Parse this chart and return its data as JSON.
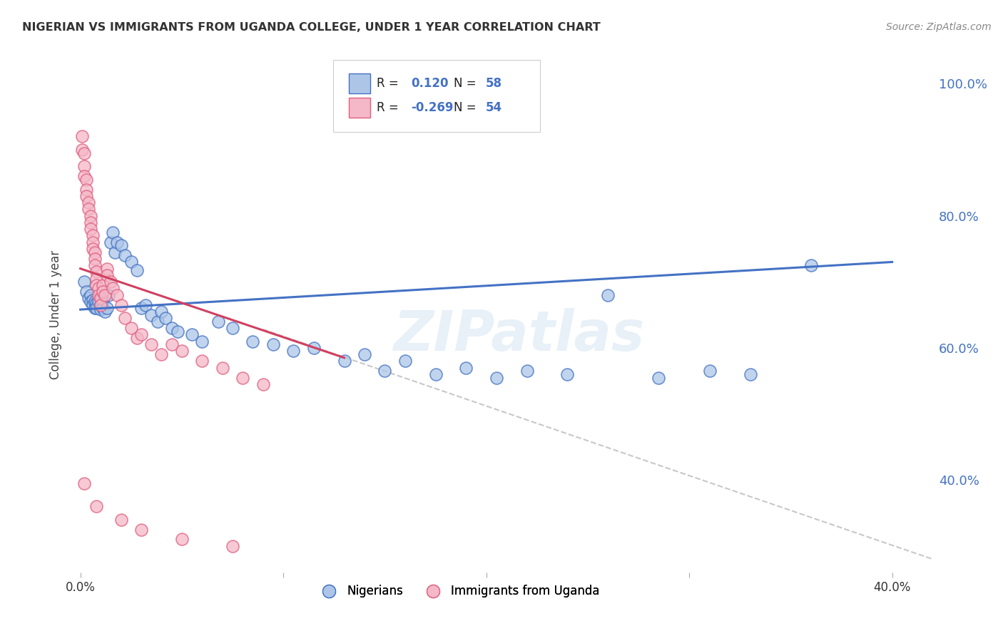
{
  "title": "NIGERIAN VS IMMIGRANTS FROM UGANDA COLLEGE, UNDER 1 YEAR CORRELATION CHART",
  "source": "Source: ZipAtlas.com",
  "ylabel": "College, Under 1 year",
  "right_yticks": [
    "100.0%",
    "80.0%",
    "60.0%",
    "40.0%"
  ],
  "right_ytick_vals": [
    1.0,
    0.8,
    0.6,
    0.4
  ],
  "legend_blue_rv": "0.120",
  "legend_blue_nv": "58",
  "legend_pink_rv": "-0.269",
  "legend_pink_nv": "54",
  "watermark": "ZIPatlas",
  "blue_color": "#adc6e8",
  "blue_edge_color": "#4472c4",
  "pink_color": "#f4b8c8",
  "pink_edge_color": "#e06080",
  "blue_line_color": "#4472c4",
  "pink_line_color": "#d04060",
  "dashed_line_color": "#c8c8c8",
  "blue_scatter": [
    [
      0.002,
      0.7
    ],
    [
      0.003,
      0.685
    ],
    [
      0.004,
      0.675
    ],
    [
      0.005,
      0.68
    ],
    [
      0.005,
      0.67
    ],
    [
      0.006,
      0.672
    ],
    [
      0.006,
      0.665
    ],
    [
      0.007,
      0.67
    ],
    [
      0.007,
      0.66
    ],
    [
      0.008,
      0.668
    ],
    [
      0.008,
      0.66
    ],
    [
      0.009,
      0.67
    ],
    [
      0.01,
      0.665
    ],
    [
      0.01,
      0.658
    ],
    [
      0.011,
      0.672
    ],
    [
      0.011,
      0.66
    ],
    [
      0.012,
      0.655
    ],
    [
      0.013,
      0.66
    ],
    [
      0.014,
      0.68
    ],
    [
      0.015,
      0.76
    ],
    [
      0.016,
      0.775
    ],
    [
      0.017,
      0.745
    ],
    [
      0.018,
      0.76
    ],
    [
      0.02,
      0.755
    ],
    [
      0.022,
      0.74
    ],
    [
      0.025,
      0.73
    ],
    [
      0.028,
      0.718
    ],
    [
      0.03,
      0.66
    ],
    [
      0.032,
      0.665
    ],
    [
      0.035,
      0.65
    ],
    [
      0.038,
      0.64
    ],
    [
      0.04,
      0.655
    ],
    [
      0.042,
      0.645
    ],
    [
      0.045,
      0.63
    ],
    [
      0.048,
      0.625
    ],
    [
      0.055,
      0.62
    ],
    [
      0.06,
      0.61
    ],
    [
      0.068,
      0.64
    ],
    [
      0.075,
      0.63
    ],
    [
      0.085,
      0.61
    ],
    [
      0.095,
      0.605
    ],
    [
      0.105,
      0.595
    ],
    [
      0.115,
      0.6
    ],
    [
      0.13,
      0.58
    ],
    [
      0.14,
      0.59
    ],
    [
      0.15,
      0.565
    ],
    [
      0.16,
      0.58
    ],
    [
      0.175,
      0.56
    ],
    [
      0.19,
      0.57
    ],
    [
      0.205,
      0.555
    ],
    [
      0.22,
      0.565
    ],
    [
      0.24,
      0.56
    ],
    [
      0.26,
      0.68
    ],
    [
      0.285,
      0.555
    ],
    [
      0.31,
      0.565
    ],
    [
      0.33,
      0.56
    ],
    [
      0.36,
      0.725
    ]
  ],
  "pink_scatter": [
    [
      0.001,
      0.92
    ],
    [
      0.001,
      0.9
    ],
    [
      0.002,
      0.895
    ],
    [
      0.002,
      0.875
    ],
    [
      0.002,
      0.86
    ],
    [
      0.003,
      0.855
    ],
    [
      0.003,
      0.84
    ],
    [
      0.003,
      0.83
    ],
    [
      0.004,
      0.82
    ],
    [
      0.004,
      0.81
    ],
    [
      0.005,
      0.8
    ],
    [
      0.005,
      0.79
    ],
    [
      0.005,
      0.78
    ],
    [
      0.006,
      0.77
    ],
    [
      0.006,
      0.76
    ],
    [
      0.006,
      0.75
    ],
    [
      0.007,
      0.745
    ],
    [
      0.007,
      0.735
    ],
    [
      0.007,
      0.725
    ],
    [
      0.008,
      0.715
    ],
    [
      0.008,
      0.705
    ],
    [
      0.008,
      0.695
    ],
    [
      0.009,
      0.69
    ],
    [
      0.009,
      0.68
    ],
    [
      0.01,
      0.675
    ],
    [
      0.01,
      0.665
    ],
    [
      0.011,
      0.695
    ],
    [
      0.011,
      0.685
    ],
    [
      0.012,
      0.68
    ],
    [
      0.013,
      0.72
    ],
    [
      0.013,
      0.71
    ],
    [
      0.015,
      0.7
    ],
    [
      0.016,
      0.69
    ],
    [
      0.018,
      0.68
    ],
    [
      0.02,
      0.665
    ],
    [
      0.022,
      0.645
    ],
    [
      0.025,
      0.63
    ],
    [
      0.028,
      0.615
    ],
    [
      0.03,
      0.62
    ],
    [
      0.035,
      0.605
    ],
    [
      0.04,
      0.59
    ],
    [
      0.045,
      0.605
    ],
    [
      0.05,
      0.595
    ],
    [
      0.06,
      0.58
    ],
    [
      0.07,
      0.57
    ],
    [
      0.08,
      0.555
    ],
    [
      0.09,
      0.545
    ],
    [
      0.002,
      0.395
    ],
    [
      0.008,
      0.36
    ],
    [
      0.02,
      0.34
    ],
    [
      0.03,
      0.325
    ],
    [
      0.05,
      0.31
    ],
    [
      0.075,
      0.3
    ]
  ],
  "blue_line": {
    "x0": 0.0,
    "y0": 0.658,
    "x1": 0.4,
    "y1": 0.73
  },
  "pink_line": {
    "x0": 0.0,
    "y0": 0.72,
    "x1": 0.13,
    "y1": 0.585
  },
  "dashed_line": {
    "x0": 0.09,
    "y0": 0.628,
    "x1": 0.42,
    "y1": 0.28
  },
  "xlim": [
    -0.005,
    0.42
  ],
  "ylim": [
    0.26,
    1.04
  ],
  "background_color": "#ffffff",
  "grid_color": "#d8d8d8",
  "title_color": "#333333",
  "source_color": "#888888",
  "axis_color": "#4472c4"
}
